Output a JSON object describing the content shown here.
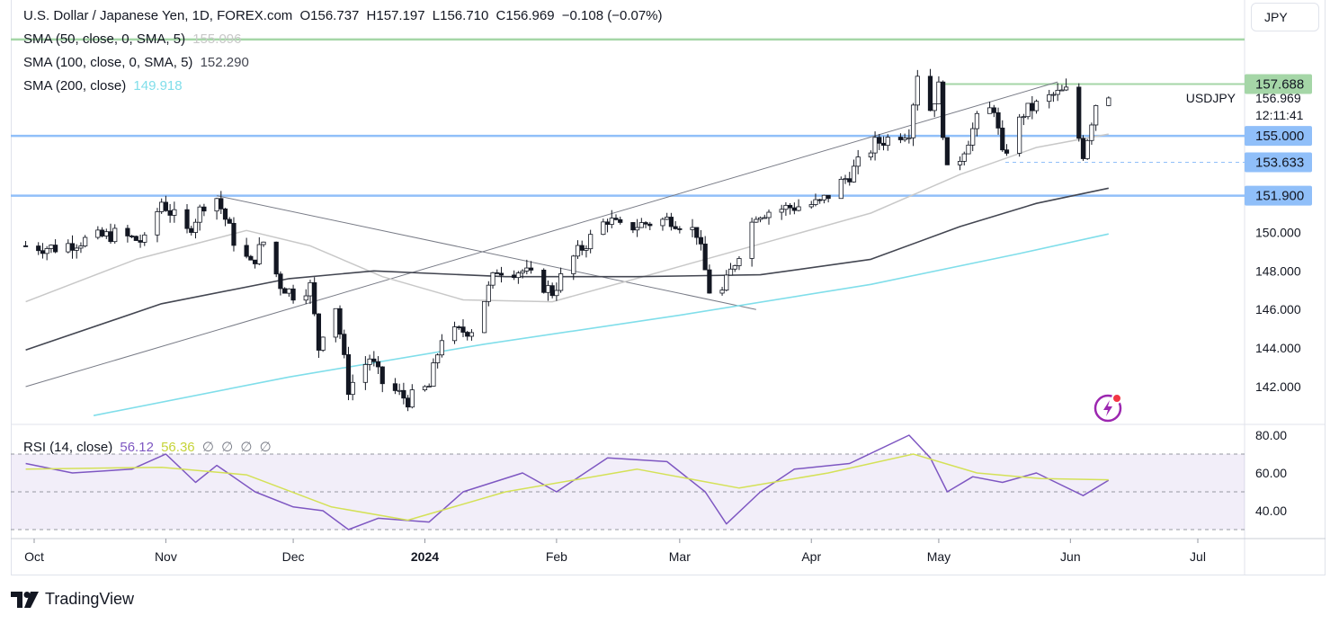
{
  "header": {
    "symbol_title": "U.S. Dollar / Japanese Yen, 1D, FOREX.com",
    "open": "O156.737",
    "high": "H157.197",
    "low": "L156.710",
    "close": "C156.969",
    "change": "−0.108 (−0.07%)",
    "indicators": [
      {
        "label": "SMA (50, close, 0, SMA, 5)",
        "value": "155.096",
        "color": "#c8c8c8"
      },
      {
        "label": "SMA (100, close, 0, SMA, 5)",
        "value": "152.290",
        "color": "#434651"
      },
      {
        "label": "SMA (200, close)",
        "value": "149.918",
        "color": "#80deea"
      }
    ]
  },
  "currency_button": "JPY",
  "symbol_label": "USDJPY",
  "last_price": "156.969",
  "countdown": "12:11:41",
  "price_tags": [
    {
      "label": "157.688",
      "value": 157.688,
      "bg": "#a5d6a7"
    },
    {
      "label": "155.000",
      "value": 155.0,
      "bg": "#90bff9"
    },
    {
      "label": "153.633",
      "value": 153.633,
      "bg": "#90bff9"
    },
    {
      "label": "151.900",
      "value": 151.9,
      "bg": "#90bff9"
    }
  ],
  "watermark": "TradingView",
  "chart_data": {
    "type": "candlestick",
    "price_axis": {
      "ticks": [
        "142.000",
        "144.000",
        "146.000",
        "148.000",
        "150.000"
      ],
      "ylim": [
        140.5,
        160.5
      ]
    },
    "time_axis": {
      "ticks": [
        "Oct",
        "Nov",
        "Dec",
        "2024",
        "Feb",
        "Mar",
        "Apr",
        "May",
        "Jun",
        "Jul"
      ]
    },
    "horizontal_levels": [
      {
        "value": 160.0,
        "color": "#a5d6a7"
      },
      {
        "value": 157.688,
        "color": "#a5d6a7"
      },
      {
        "value": 155.0,
        "color": "#90bff9"
      },
      {
        "value": 151.9,
        "color": "#90bff9"
      },
      {
        "value": 153.633,
        "color": "#90bff9",
        "style": "dashed"
      }
    ],
    "trendlines": [
      {
        "from": [
          "2023-09-29",
          142.0
        ],
        "to": [
          "2024-05-29",
          157.8
        ]
      },
      {
        "from": [
          "2023-11-13",
          151.9
        ],
        "to": [
          "2024-03-19",
          146.0
        ]
      }
    ],
    "candle_anchors": [
      [
        "2023-09-29",
        149.3
      ],
      [
        "2023-10-06",
        149.2
      ],
      [
        "2023-10-13",
        149.6
      ],
      [
        "2023-10-20",
        149.9
      ],
      [
        "2023-10-27",
        149.5
      ],
      [
        "2023-10-31",
        151.6
      ],
      [
        "2023-11-06",
        150.0
      ],
      [
        "2023-11-10",
        151.5
      ],
      [
        "2023-11-13",
        151.8
      ],
      [
        "2023-11-17",
        149.6
      ],
      [
        "2023-11-21",
        148.3
      ],
      [
        "2023-11-24",
        149.5
      ],
      [
        "2023-11-28",
        147.3
      ],
      [
        "2023-12-01",
        146.8
      ],
      [
        "2023-12-05",
        147.2
      ],
      [
        "2023-12-07",
        144.0
      ],
      [
        "2023-12-08",
        144.9
      ],
      [
        "2023-12-11",
        146.2
      ],
      [
        "2023-12-14",
        141.9
      ],
      [
        "2023-12-19",
        143.5
      ],
      [
        "2023-12-22",
        142.2
      ],
      [
        "2023-12-28",
        141.3
      ],
      [
        "2024-01-02",
        142.0
      ],
      [
        "2024-01-05",
        144.6
      ],
      [
        "2024-01-12",
        145.0
      ],
      [
        "2024-01-18",
        148.1
      ],
      [
        "2024-01-24",
        148.0
      ],
      [
        "2024-01-31",
        146.9
      ],
      [
        "2024-02-05",
        148.7
      ],
      [
        "2024-02-13",
        150.7
      ],
      [
        "2024-02-16",
        150.2
      ],
      [
        "2024-02-23",
        150.5
      ],
      [
        "2024-02-28",
        150.7
      ],
      [
        "2024-03-05",
        150.0
      ],
      [
        "2024-03-08",
        147.0
      ],
      [
        "2024-03-11",
        146.9
      ],
      [
        "2024-03-15",
        149.0
      ],
      [
        "2024-03-19",
        151.0
      ],
      [
        "2024-03-27",
        151.3
      ],
      [
        "2024-04-03",
        151.5
      ],
      [
        "2024-04-10",
        153.0
      ],
      [
        "2024-04-16",
        154.6
      ],
      [
        "2024-04-24",
        155.3
      ],
      [
        "2024-04-26",
        158.3
      ],
      [
        "2024-04-29",
        156.4
      ],
      [
        "2024-05-01",
        157.5
      ],
      [
        "2024-05-03",
        153.1
      ],
      [
        "2024-05-06",
        153.9
      ],
      [
        "2024-05-10",
        155.8
      ],
      [
        "2024-05-14",
        156.5
      ],
      [
        "2024-05-16",
        153.9
      ],
      [
        "2024-05-21",
        156.2
      ],
      [
        "2024-05-28",
        157.1
      ],
      [
        "2024-05-31",
        157.3
      ],
      [
        "2024-06-04",
        154.1
      ],
      [
        "2024-06-07",
        156.7
      ],
      [
        "2024-06-10",
        156.969
      ]
    ],
    "sma_series": [
      {
        "name": "SMA 50",
        "color": "#c8c8c8",
        "points": [
          [
            "2023-09-29",
            146.4
          ],
          [
            "2023-10-25",
            148.6
          ],
          [
            "2023-11-20",
            150.1
          ],
          [
            "2023-12-05",
            149.3
          ],
          [
            "2023-12-22",
            147.7
          ],
          [
            "2024-01-10",
            146.5
          ],
          [
            "2024-01-31",
            146.4
          ],
          [
            "2024-02-23",
            147.8
          ],
          [
            "2024-03-20",
            149.4
          ],
          [
            "2024-04-15",
            151.0
          ],
          [
            "2024-05-06",
            153.0
          ],
          [
            "2024-05-24",
            154.4
          ],
          [
            "2024-06-10",
            155.096
          ]
        ]
      },
      {
        "name": "SMA 100",
        "color": "#434651",
        "points": [
          [
            "2023-09-29",
            143.9
          ],
          [
            "2023-10-31",
            146.3
          ],
          [
            "2023-11-30",
            147.6
          ],
          [
            "2023-12-20",
            148.0
          ],
          [
            "2024-01-20",
            147.7
          ],
          [
            "2024-02-20",
            147.7
          ],
          [
            "2024-03-20",
            147.8
          ],
          [
            "2024-04-15",
            148.6
          ],
          [
            "2024-05-06",
            150.3
          ],
          [
            "2024-05-24",
            151.5
          ],
          [
            "2024-06-10",
            152.29
          ]
        ]
      },
      {
        "name": "SMA 200",
        "color": "#80deea",
        "points": [
          [
            "2023-10-15",
            140.5
          ],
          [
            "2023-11-30",
            142.5
          ],
          [
            "2024-01-15",
            144.2
          ],
          [
            "2024-03-01",
            145.7
          ],
          [
            "2024-04-15",
            147.3
          ],
          [
            "2024-05-20",
            148.9
          ],
          [
            "2024-06-10",
            149.918
          ]
        ]
      }
    ],
    "rsi_panel": {
      "label": "RSI (14, close)",
      "rsi_value": "56.12",
      "rsi_ma_value": "56.36",
      "extra_values": [
        "∅",
        "∅",
        "∅",
        "∅"
      ],
      "ticks": [
        "40.00",
        "60.00",
        "80.00"
      ],
      "bands": [
        30,
        50,
        70
      ],
      "ylim": [
        28,
        85
      ],
      "rsi": [
        [
          "2023-09-29",
          65
        ],
        [
          "2023-10-10",
          60
        ],
        [
          "2023-10-24",
          62
        ],
        [
          "2023-11-01",
          70
        ],
        [
          "2023-11-08",
          55
        ],
        [
          "2023-11-13",
          64
        ],
        [
          "2023-11-22",
          50
        ],
        [
          "2023-12-01",
          42
        ],
        [
          "2023-12-08",
          40
        ],
        [
          "2023-12-14",
          30
        ],
        [
          "2023-12-21",
          36
        ],
        [
          "2024-01-02",
          34
        ],
        [
          "2024-01-10",
          50
        ],
        [
          "2024-01-24",
          60
        ],
        [
          "2024-02-01",
          50
        ],
        [
          "2024-02-13",
          68
        ],
        [
          "2024-02-27",
          66
        ],
        [
          "2024-03-07",
          50
        ],
        [
          "2024-03-12",
          33
        ],
        [
          "2024-03-20",
          50
        ],
        [
          "2024-03-28",
          62
        ],
        [
          "2024-04-10",
          65
        ],
        [
          "2024-04-24",
          80
        ],
        [
          "2024-04-29",
          68
        ],
        [
          "2024-05-03",
          50
        ],
        [
          "2024-05-09",
          58
        ],
        [
          "2024-05-16",
          55
        ],
        [
          "2024-05-24",
          60
        ],
        [
          "2024-06-04",
          48
        ],
        [
          "2024-06-10",
          56.12
        ]
      ],
      "rsi_ma": [
        [
          "2023-09-29",
          62
        ],
        [
          "2023-10-31",
          63
        ],
        [
          "2023-11-20",
          59
        ],
        [
          "2023-12-10",
          42
        ],
        [
          "2023-12-28",
          35
        ],
        [
          "2024-01-20",
          50
        ],
        [
          "2024-02-20",
          62
        ],
        [
          "2024-03-15",
          52
        ],
        [
          "2024-04-05",
          60
        ],
        [
          "2024-04-25",
          70
        ],
        [
          "2024-05-10",
          60
        ],
        [
          "2024-05-25",
          57
        ],
        [
          "2024-06-10",
          56.36
        ]
      ]
    }
  }
}
